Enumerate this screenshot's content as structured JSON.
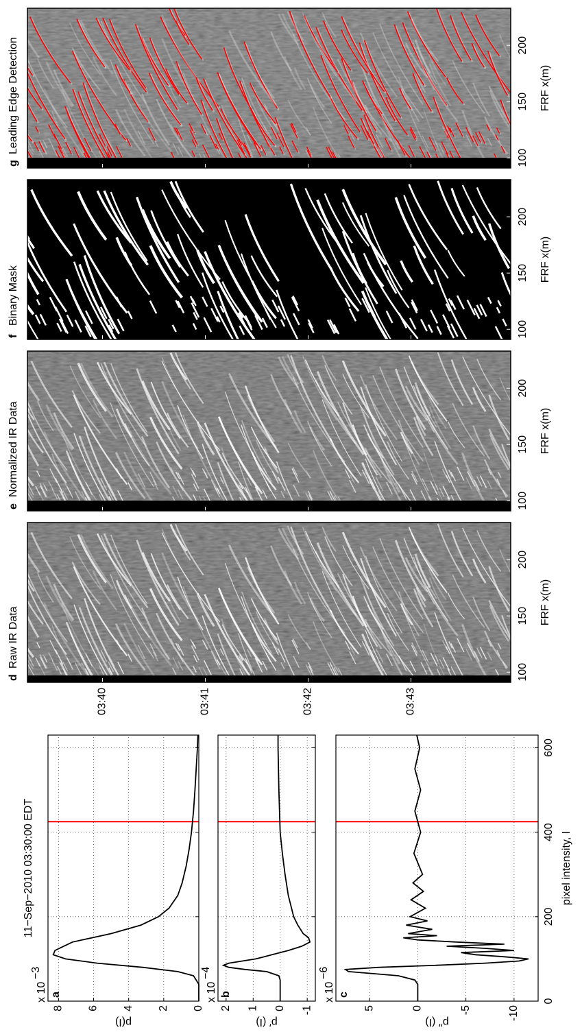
{
  "chart_data": [
    {
      "type": "line",
      "panel": "a",
      "title": "11−Sep−2010 03:30:00 EDT",
      "ylabel": "p(I)",
      "scale_label": "x 10",
      "scale_exponent": "−3",
      "x": [
        0,
        40,
        60,
        70,
        80,
        90,
        100,
        110,
        120,
        130,
        140,
        160,
        180,
        200,
        220,
        250,
        280,
        320,
        360,
        400,
        450,
        500,
        550,
        600,
        630
      ],
      "series": [
        {
          "color": "#000000",
          "values": [
            0,
            0,
            0.3,
            1.2,
            3.2,
            5.8,
            7.6,
            8.3,
            8.2,
            7.7,
            7.2,
            5,
            3.3,
            2.3,
            1.7,
            1.2,
            0.95,
            0.72,
            0.55,
            0.42,
            0.3,
            0.22,
            0.15,
            0.08,
            0.05
          ]
        }
      ],
      "xlim": [
        0,
        630
      ],
      "xticks": [
        0,
        200,
        400,
        600
      ],
      "ylim": [
        0,
        8.6
      ],
      "yticks": [
        0,
        2,
        4,
        6,
        8
      ],
      "threshold": 425,
      "threshold_color": "#ff0000",
      "grid": true,
      "xtick_labels": false
    },
    {
      "type": "line",
      "panel": "b",
      "ylabel": "p′ (I)",
      "scale_label": "x 10",
      "scale_exponent": "−4",
      "x": [
        0,
        50,
        60,
        70,
        75,
        80,
        85,
        90,
        95,
        100,
        110,
        120,
        130,
        140,
        150,
        160,
        180,
        200,
        250,
        300,
        350,
        400,
        500,
        600,
        630
      ],
      "series": [
        {
          "color": "#000000",
          "values": [
            0,
            0,
            0.05,
            0.5,
            1.3,
            1.9,
            2.1,
            1.9,
            1.4,
            0.9,
            0.3,
            -0.3,
            -0.8,
            -1.1,
            -1.05,
            -0.85,
            -0.65,
            -0.5,
            -0.3,
            -0.18,
            -0.08,
            0,
            0.05,
            0.08,
            0.08
          ]
        }
      ],
      "xlim": [
        0,
        630
      ],
      "xticks": [
        0,
        200,
        400,
        600
      ],
      "ylim": [
        -1.3,
        2.3
      ],
      "yticks": [
        -1,
        0,
        1,
        2
      ],
      "threshold": 425,
      "threshold_color": "#ff0000",
      "grid": true,
      "xtick_labels": false
    },
    {
      "type": "line",
      "panel": "c",
      "ylabel": "p′′ (I)",
      "scale_label": "x 10",
      "scale_exponent": "−6",
      "xlabel": "pixel intensity, I",
      "x": [
        0,
        40,
        50,
        60,
        65,
        70,
        75,
        80,
        85,
        90,
        95,
        100,
        105,
        110,
        115,
        120,
        125,
        130,
        135,
        140,
        145,
        150,
        155,
        160,
        170,
        180,
        190,
        200,
        220,
        240,
        260,
        280,
        300,
        350,
        400,
        450,
        500,
        550,
        600,
        630
      ],
      "series": [
        {
          "color": "#000000",
          "values": [
            0,
            0,
            0.3,
            2,
            4.5,
            7.2,
            7.5,
            4,
            -2,
            -7,
            -10.5,
            -11.5,
            -9,
            -6,
            -4.5,
            -10,
            -7,
            -3,
            -9,
            -4,
            0,
            1.5,
            -2,
            1,
            -1.5,
            1.2,
            -1,
            0.8,
            -0.8,
            0.7,
            -0.6,
            0.5,
            -0.5,
            0.4,
            -0.3,
            0.3,
            -0.3,
            0.3,
            -0.2,
            0.1
          ]
        }
      ],
      "xlim": [
        0,
        630
      ],
      "xticks": [
        0,
        200,
        400,
        600
      ],
      "ylim": [
        -12.5,
        8.5
      ],
      "yticks": [
        -10,
        -5,
        0,
        5
      ],
      "threshold": 425,
      "threshold_color": "#ff0000",
      "grid": true,
      "xtick_labels": true
    },
    {
      "type": "image",
      "xlabel": "FRF x(m)",
      "panels": [
        {
          "letter": "d",
          "title": "Raw IR Data",
          "style": "raw"
        },
        {
          "letter": "e",
          "title": "Normalized IR Data",
          "style": "normalized"
        },
        {
          "letter": "f",
          "title": "Binary Mask",
          "style": "mask"
        },
        {
          "letter": "g",
          "title": "Leading Edge Detection",
          "style": "edge"
        }
      ],
      "xlim": [
        91,
        233
      ],
      "xticks": [
        100,
        150,
        200
      ],
      "ylim": [
        39.27,
        43.97
      ],
      "yticks": [
        {
          "value": 40,
          "label": "03:40"
        },
        {
          "value": 41,
          "label": "03:41"
        },
        {
          "value": 42,
          "label": "03:42"
        },
        {
          "value": 43,
          "label": "03:43"
        }
      ],
      "edge_color": "#ff0000"
    }
  ]
}
